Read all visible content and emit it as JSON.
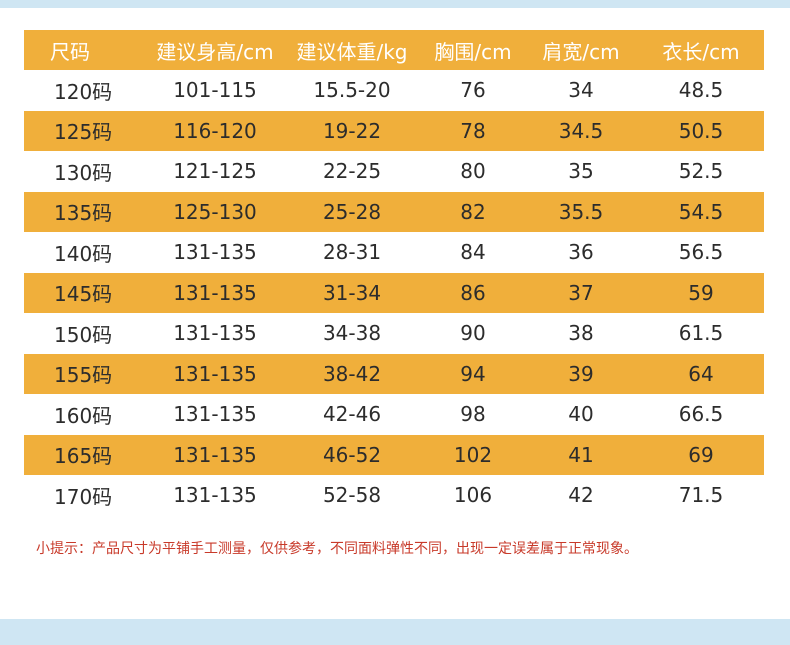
{
  "table": {
    "headers": [
      "尺码",
      "建议身高/cm",
      "建议体重/kg",
      "胸围/cm",
      "肩宽/cm",
      "衣长/cm"
    ],
    "rows": [
      [
        "120码",
        "101-115",
        "15.5-20",
        "76",
        "34",
        "48.5"
      ],
      [
        "125码",
        "116-120",
        "19-22",
        "78",
        "34.5",
        "50.5"
      ],
      [
        "130码",
        "121-125",
        "22-25",
        "80",
        "35",
        "52.5"
      ],
      [
        "135码",
        "125-130",
        "25-28",
        "82",
        "35.5",
        "54.5"
      ],
      [
        "140码",
        "131-135",
        "28-31",
        "84",
        "36",
        "56.5"
      ],
      [
        "145码",
        "131-135",
        "31-34",
        "86",
        "37",
        "59"
      ],
      [
        "150码",
        "131-135",
        "34-38",
        "90",
        "38",
        "61.5"
      ],
      [
        "155码",
        "131-135",
        "38-42",
        "94",
        "39",
        "64"
      ],
      [
        "160码",
        "131-135",
        "42-46",
        "98",
        "40",
        "66.5"
      ],
      [
        "165码",
        "131-135",
        "46-52",
        "102",
        "41",
        "69"
      ],
      [
        "170码",
        "131-135",
        "52-58",
        "106",
        "42",
        "71.5"
      ]
    ]
  },
  "note": "小提示：产品尺寸为平铺手工测量，仅供参考，不同面料弹性不同，出现一定误差属于正常现象。",
  "colors": {
    "header_bg": "#f0af3b",
    "stripe_bg": "#f0af3b",
    "note_text": "#c83a2a",
    "band": "#cfe6f3"
  }
}
